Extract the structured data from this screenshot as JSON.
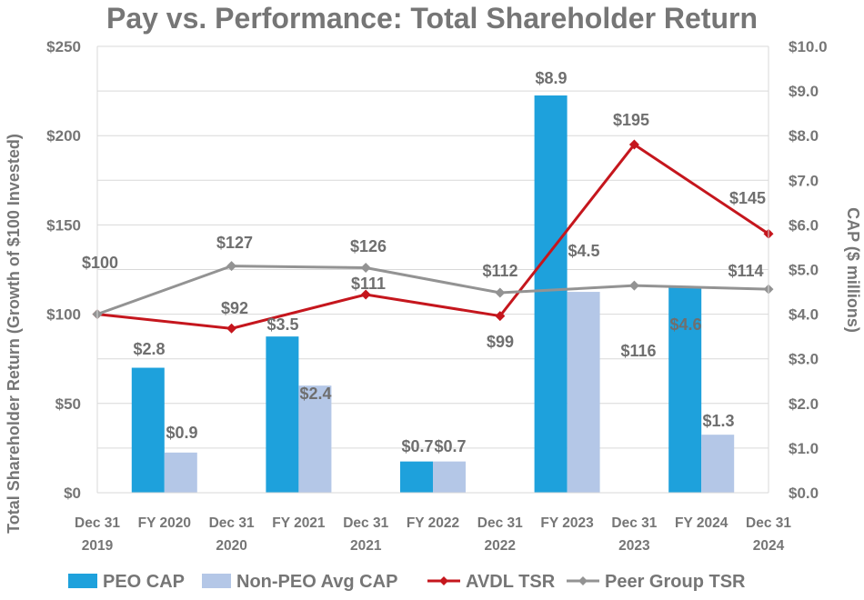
{
  "chart_data": {
    "type": "bar+line",
    "title": "Pay vs. Performance: Total Shareholder Return",
    "ylabel_left": "Total Shareholder Return (Growth of $100 Invested)",
    "ylabel_right": "CAP ($ millions)",
    "ylim_left": [
      0,
      250
    ],
    "ylim_right": [
      0,
      10
    ],
    "left_ticks": [
      "$0",
      "$50",
      "$100",
      "$150",
      "$200",
      "$250"
    ],
    "right_ticks": [
      "$0.0",
      "$1.0",
      "$2.0",
      "$3.0",
      "$4.0",
      "$5.0",
      "$6.0",
      "$7.0",
      "$8.0",
      "$9.0",
      "$10.0"
    ],
    "categories": [
      [
        "Dec 31",
        "2019"
      ],
      [
        "FY 2020"
      ],
      [
        "Dec 31",
        "2020"
      ],
      [
        "FY 2021"
      ],
      [
        "Dec 31",
        "2021"
      ],
      [
        "FY 2022"
      ],
      [
        "Dec 31",
        "2022"
      ],
      [
        "FY 2023"
      ],
      [
        "Dec 31",
        "2023"
      ],
      [
        "FY 2024"
      ],
      [
        "Dec 31",
        "2024"
      ]
    ],
    "bar_series": [
      {
        "name": "PEO CAP",
        "color": "#1ea1dc",
        "positions": [
          1,
          3,
          5,
          7,
          9
        ],
        "values": [
          2.8,
          3.5,
          0.7,
          8.9,
          4.6
        ],
        "labels": [
          "$2.8",
          "$3.5",
          "$0.7",
          "$8.9",
          "$4.6"
        ]
      },
      {
        "name": "Non-PEO Avg CAP",
        "color": "#b4c7e7",
        "positions": [
          1,
          3,
          5,
          7,
          9
        ],
        "values": [
          0.9,
          2.4,
          0.7,
          4.5,
          1.3
        ],
        "labels": [
          "$0.9",
          "$2.4",
          "$0.7",
          "$4.5",
          "$1.3"
        ]
      }
    ],
    "line_series": [
      {
        "name": "AVDL TSR",
        "color": "#c5161d",
        "marker": "diamond",
        "positions": [
          0,
          2,
          4,
          6,
          8,
          10
        ],
        "values": [
          100,
          92,
          111,
          99,
          195,
          145
        ],
        "labels": [
          "$100",
          "$92",
          "$111",
          "$99",
          "$195",
          "$145"
        ]
      },
      {
        "name": "Peer Group TSR",
        "color": "#939393",
        "marker": "diamond",
        "positions": [
          0,
          2,
          4,
          6,
          8,
          10
        ],
        "values": [
          100,
          127,
          126,
          112,
          116,
          114
        ],
        "labels": [
          "",
          "$127",
          "$126",
          "$112",
          "$116",
          "$114"
        ]
      }
    ],
    "legend": [
      "PEO CAP",
      "Non-PEO Avg CAP",
      "AVDL TSR",
      "Peer Group TSR"
    ],
    "grid": true,
    "legend_position": "bottom"
  }
}
